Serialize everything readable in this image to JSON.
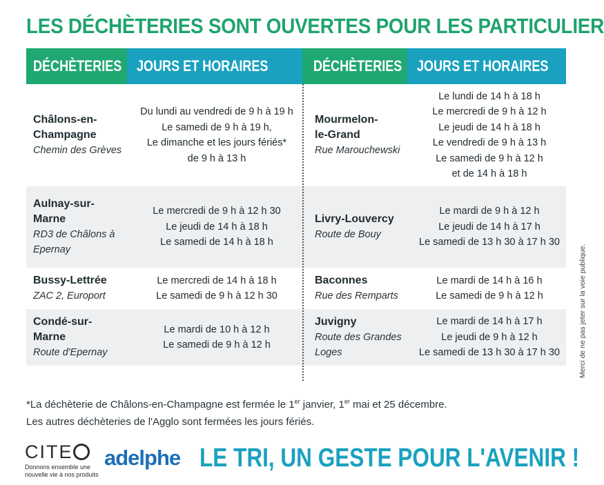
{
  "title": "LES DÉCHÈTERIES SONT OUVERTES POUR LES PARTICULIERS",
  "headers": {
    "col1": "DÉCHÈTERIES",
    "col2": "JOURS ET HORAIRES",
    "col3": "DÉCHÈTERIES",
    "col4": "JOURS ET HORAIRES"
  },
  "left_rows": [
    {
      "name": [
        "Châlons-en-",
        "Champagne"
      ],
      "address": [
        "Chemin des Grèves"
      ],
      "hours": [
        "Du lundi au vendredi de 9 h à 19 h",
        "Le samedi de 9 h à 19 h,",
        "Le dimanche et les jours fériés*",
        "de 9 h à 13 h"
      ]
    },
    {
      "name": [
        "Aulnay-sur-",
        "Marne"
      ],
      "address": [
        "RD3 de Châlons à",
        "Epernay"
      ],
      "hours": [
        "Le mercredi de 9 h à 12 h 30",
        "Le jeudi de 14 h à 18 h",
        "Le samedi de 14 h à 18 h"
      ]
    },
    {
      "name": [
        "Bussy-Lettrée"
      ],
      "address": [
        "ZAC 2, Europort"
      ],
      "hours": [
        "Le mercredi de 14 h à 18 h",
        "Le samedi de 9 h à 12 h 30"
      ]
    },
    {
      "name": [
        "Condé-sur-",
        "Marne"
      ],
      "address": [
        "Route d'Epernay"
      ],
      "hours": [
        "Le mardi de 10 h à 12 h",
        "Le samedi de 9 h à 12 h"
      ]
    }
  ],
  "right_rows": [
    {
      "name": [
        "Mourmelon-",
        "le-Grand"
      ],
      "address": [
        "Rue Marouchewski"
      ],
      "hours": [
        "Le lundi de 14 h à 18 h",
        "Le mercredi de 9 h à 12 h",
        "Le jeudi de 14 h à 18 h",
        "Le vendredi de 9 h à 13 h",
        "Le samedi de 9 h à 12 h",
        "et de 14 h à 18 h"
      ]
    },
    {
      "name": [
        "Livry-Louvercy"
      ],
      "address": [
        "Route de Bouy"
      ],
      "hours": [
        "Le mardi de 9 h à 12 h",
        "Le jeudi de 14 h à 17 h",
        "Le samedi de 13 h 30 à 17 h 30"
      ]
    },
    {
      "name": [
        "Baconnes"
      ],
      "address": [
        "Rue des Remparts"
      ],
      "hours": [
        "Le mardi de 14 h à 16 h",
        "Le samedi de 9 h à 12 h"
      ]
    },
    {
      "name": [
        "Juvigny"
      ],
      "address": [
        "Route des Grandes",
        "Loges"
      ],
      "hours": [
        "Le mardi de 14 h à 17 h",
        "Le jeudi de 9 h à 12 h",
        "Le samedi de 13 h 30 à 17 h 30"
      ]
    }
  ],
  "footnote": {
    "line1_a": "*La déchèterie de Châlons-en-Champagne est fermée le 1",
    "sup1": "er",
    "line1_b": " janvier, 1",
    "sup2": "er",
    "line1_c": " mai et 25 décembre.",
    "line2": "Les autres déchèteries de l'Agglo sont fermées les jours fériés."
  },
  "side_note": "Merci de ne pas jeter sur la voie publique.",
  "logos": {
    "citeo_left": "CITE",
    "citeo_tagline": "Donnons ensemble une nouvelle vie à nos produits",
    "adelphe": "adelphe"
  },
  "slogan": "LE TRI, UN GESTE POUR L'AVENIR !",
  "colors": {
    "green": "#20a873",
    "teal": "#1aa1bf",
    "row_alt": "#eeeff0",
    "adelphe_blue": "#1d6fb8"
  }
}
